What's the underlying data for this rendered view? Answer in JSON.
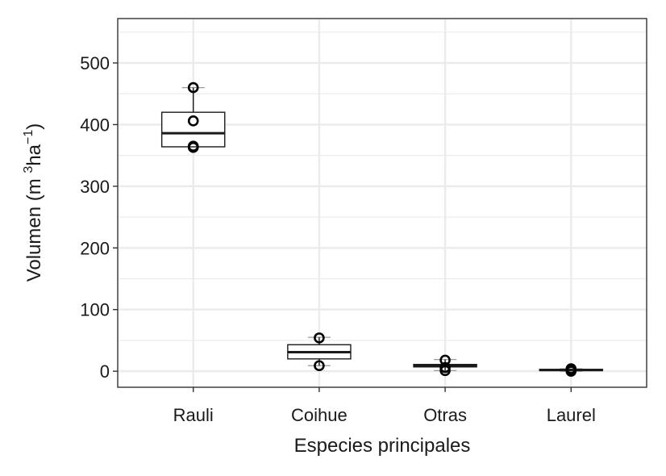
{
  "chart_data": {
    "type": "boxplot",
    "title": "",
    "xlabel": "Especies principales",
    "ylabel": {
      "prefix": "Volumen (m ",
      "sup1": "3",
      "mid": "ha",
      "sup2": "−1",
      "suffix": ")"
    },
    "ylim": [
      -26,
      572
    ],
    "y_ticks": [
      0,
      100,
      200,
      300,
      400,
      500
    ],
    "y_tick_labels": [
      "0",
      "100",
      "200",
      "300",
      "400",
      "500"
    ],
    "grid": true,
    "categories": [
      "Rauli",
      "Coihue",
      "Otras",
      "Laurel"
    ],
    "boxes": [
      {
        "category": "Rauli",
        "q1": 364,
        "median": 386,
        "q3": 420,
        "whisker_low": 364,
        "whisker_high": 460,
        "points": [
          460,
          406,
          365,
          363
        ]
      },
      {
        "category": "Coihue",
        "q1": 20,
        "median": 31,
        "q3": 43,
        "whisker_low": 9,
        "whisker_high": 55,
        "points": [
          54,
          9
        ]
      },
      {
        "category": "Otras",
        "q1": 7,
        "median": 9,
        "q3": 11,
        "whisker_low": 1,
        "whisker_high": 19,
        "points": [
          18,
          6,
          1
        ]
      },
      {
        "category": "Laurel",
        "q1": 1,
        "median": 2,
        "q3": 3,
        "whisker_low": 0,
        "whisker_high": 4,
        "points": [
          4,
          2,
          0
        ]
      }
    ]
  }
}
